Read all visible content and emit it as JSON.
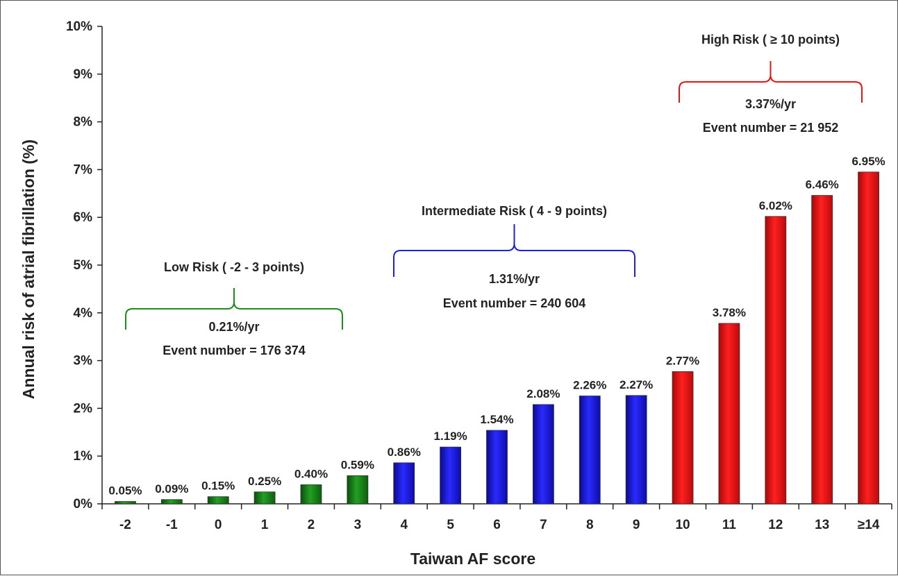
{
  "chart_data": {
    "type": "bar",
    "xlabel": "Taiwan AF score",
    "ylabel": "Annual risk of atrial fibrillation (%)",
    "ylim": [
      0,
      10
    ],
    "y_ticks": [
      "0%",
      "1%",
      "2%",
      "3%",
      "4%",
      "5%",
      "6%",
      "7%",
      "8%",
      "9%",
      "10%"
    ],
    "grid": false,
    "categories": [
      "-2",
      "-1",
      "0",
      "1",
      "2",
      "3",
      "4",
      "5",
      "6",
      "7",
      "8",
      "9",
      "10",
      "11",
      "12",
      "13",
      "≥14"
    ],
    "values": [
      0.05,
      0.09,
      0.15,
      0.25,
      0.4,
      0.59,
      0.86,
      1.19,
      1.54,
      2.08,
      2.26,
      2.27,
      2.77,
      3.78,
      6.02,
      6.46,
      6.95
    ],
    "value_labels": [
      "0.05%",
      "0.09%",
      "0.15%",
      "0.25%",
      "0.40%",
      "0.59%",
      "0.86%",
      "1.19%",
      "1.54%",
      "2.08%",
      "2.26%",
      "2.27%",
      "2.77%",
      "3.78%",
      "6.02%",
      "6.46%",
      "6.95%"
    ],
    "groups": [
      {
        "label": "Low Risk ( -2 - 3 points)",
        "rate": "0.21%/yr",
        "events": "Event number = 176 374",
        "color": "#1a8c1a",
        "from": 0,
        "to": 5
      },
      {
        "label": "Intermediate Risk ( 4 - 9 points)",
        "rate": "1.31%/yr",
        "events": "Event number = 240 604",
        "color": "#1f1fe0",
        "from": 6,
        "to": 11
      },
      {
        "label": "High Risk ( ≥ 10 points)",
        "rate": "3.37%/yr",
        "events": "Event number = 21 952",
        "color": "#ee1111",
        "from": 12,
        "to": 16
      }
    ]
  }
}
